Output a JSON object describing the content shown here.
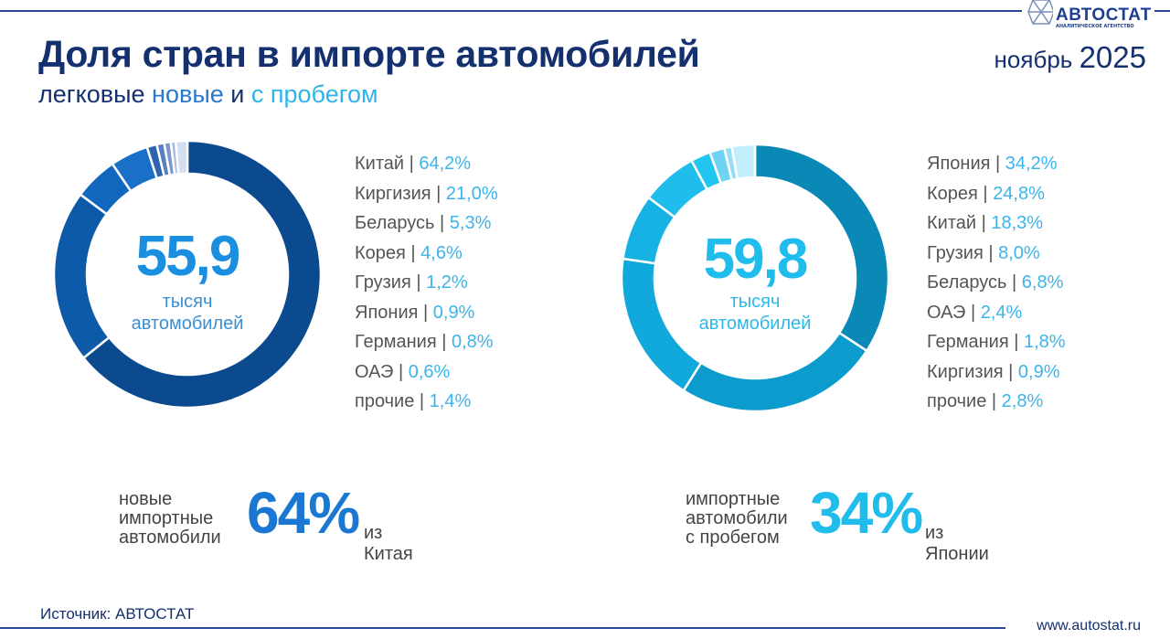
{
  "header": {
    "title": "Доля стран в импорте автомобилей",
    "subtitle_prefix": "легковые",
    "subtitle_new": "новые",
    "subtitle_and": "и",
    "subtitle_used": "с пробегом",
    "date_month": "ноябрь",
    "date_year": "2025",
    "logo_text": "АВТОСТАТ",
    "logo_subtext": "АНАЛИТИЧЕСКОЕ АГЕНТСТВО"
  },
  "chart_data": [
    {
      "type": "pie",
      "style": "donut",
      "center_value": "55,9",
      "center_unit_1": "тысяч",
      "center_unit_2": "автомобилей",
      "categories": [
        "Китай",
        "Киргизия",
        "Беларусь",
        "Корея",
        "Грузия",
        "Япония",
        "Германия",
        "ОАЭ",
        "прочие"
      ],
      "values": [
        64.2,
        21.0,
        5.3,
        4.6,
        1.2,
        0.9,
        0.8,
        0.6,
        1.4
      ],
      "labels": [
        "64,2%",
        "21,0%",
        "5,3%",
        "4,6%",
        "1,2%",
        "0,9%",
        "0,8%",
        "0,6%",
        "1,4%"
      ],
      "colors": [
        "#0b4a8f",
        "#0d5aa8",
        "#1266bd",
        "#1a6fc9",
        "#2f63ad",
        "#5a7fc0",
        "#7c98cc",
        "#a9bde0",
        "#d3def2"
      ]
    },
    {
      "type": "pie",
      "style": "donut",
      "center_value": "59,8",
      "center_unit_1": "тысяч",
      "center_unit_2": "автомобилей",
      "categories": [
        "Япония",
        "Корея",
        "Китай",
        "Грузия",
        "Беларусь",
        "ОАЭ",
        "Германия",
        "Киргизия",
        "прочие"
      ],
      "values": [
        34.2,
        24.8,
        18.3,
        8.0,
        6.8,
        2.4,
        1.8,
        0.9,
        2.8
      ],
      "labels": [
        "34,2%",
        "24,8%",
        "18,3%",
        "8,0%",
        "6,8%",
        "2,4%",
        "1,8%",
        "0,9%",
        "2,8%"
      ],
      "colors": [
        "#0a88b6",
        "#0b9bcc",
        "#11a8dc",
        "#16b2e4",
        "#1fbcec",
        "#22c4f0",
        "#6fd3f3",
        "#93dff6",
        "#c2edfa"
      ]
    }
  ],
  "notes": [
    {
      "label_lines": [
        "новые",
        "импортные",
        "автомобили"
      ],
      "percent": "64%",
      "from": "из Китая",
      "color": "#1a78d2"
    },
    {
      "label_lines": [
        "импортные",
        "автомобили",
        "с пробегом"
      ],
      "percent": "34%",
      "from": "из Японии",
      "color": "#1fbcec"
    }
  ],
  "footer": {
    "source": "Источник: АВТОСТАТ",
    "site": "www.autostat.ru"
  }
}
